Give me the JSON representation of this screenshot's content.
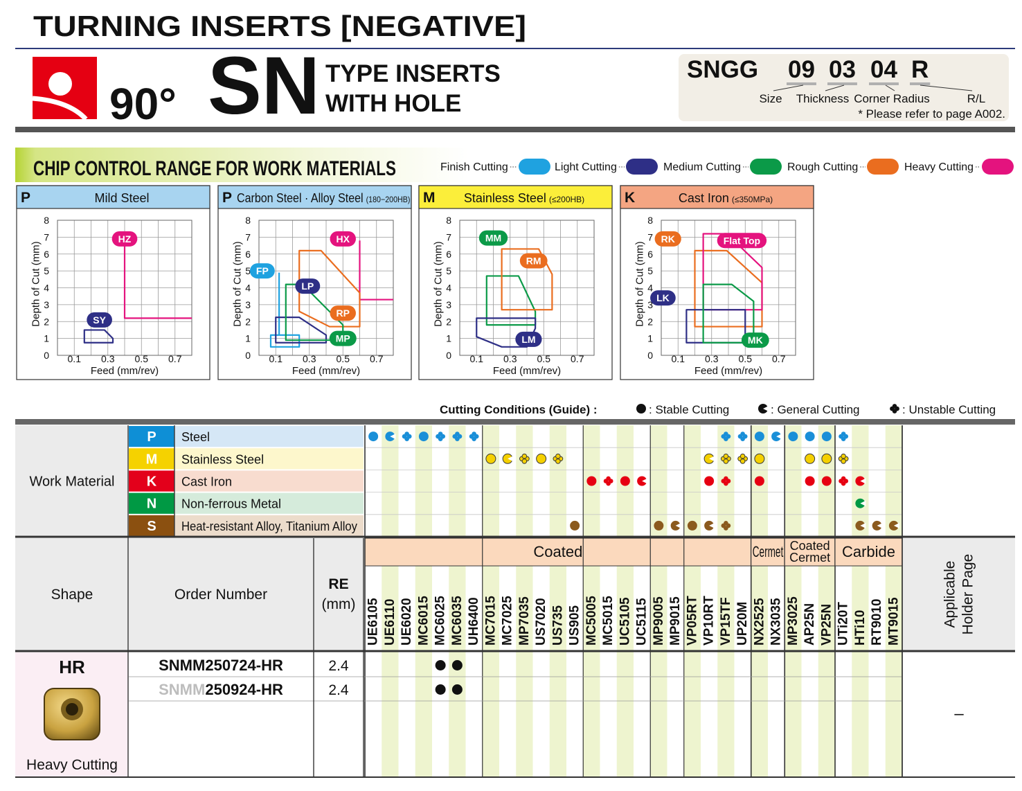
{
  "header": {
    "title": "TURNING INSERTS [NEGATIVE]",
    "angle": "90°",
    "code": "SN",
    "type_lines": [
      "TYPE INSERTS",
      "WITH HOLE"
    ]
  },
  "designation": {
    "parts": [
      "SNGG",
      "09",
      "03",
      "04",
      "R"
    ],
    "labels": [
      "Size",
      "Thickness",
      "Corner Radius",
      "R/L"
    ],
    "note": "* Please refer to page A002."
  },
  "chip_control": {
    "title": "CHIP CONTROL RANGE FOR WORK MATERIALS",
    "legend": [
      {
        "label": "Finish Cutting",
        "color": "#1fa2e0"
      },
      {
        "label": "Light Cutting",
        "color": "#2e2f86"
      },
      {
        "label": "Medium Cutting",
        "color": "#0b9a48"
      },
      {
        "label": "Rough Cutting",
        "color": "#ea6d1f"
      },
      {
        "label": "Heavy Cutting",
        "color": "#e4137e"
      }
    ],
    "charts": [
      {
        "type": "region",
        "letter": "P",
        "title": "Mild Steel",
        "header_color": "#a8d4f0",
        "xlabel": "Feed (mm/rev)",
        "ylabel": "Depth of Cut (mm)",
        "xlim": [
          0,
          0.8
        ],
        "ylim": [
          0,
          8
        ],
        "xticks": [
          0.1,
          0.3,
          0.5,
          0.7
        ],
        "yticks": [
          0,
          1,
          2,
          3,
          4,
          5,
          6,
          7,
          8
        ],
        "regions": [
          {
            "label": "HZ",
            "color": "#e4137e",
            "closed": false,
            "x": [
              0.4,
              0.4,
              0.8
            ],
            "y": [
              6.9,
              2.2,
              2.2
            ]
          },
          {
            "label": "SY",
            "color": "#2e2f86",
            "closed": true,
            "x": [
              0.16,
              0.28,
              0.33,
              0.33,
              0.16
            ],
            "y": [
              1.5,
              1.5,
              1.0,
              0.75,
              0.75
            ]
          }
        ]
      },
      {
        "type": "region",
        "letter": "P",
        "title": "Carbon Steel · Alloy Steel",
        "subtitle": "(180−200HB)",
        "header_color": "#a8d4f0",
        "xlabel": "Feed (mm/rev)",
        "ylabel": "Depth of Cut (mm)",
        "xlim": [
          0,
          0.8
        ],
        "ylim": [
          0,
          8
        ],
        "xticks": [
          0.1,
          0.3,
          0.5,
          0.7
        ],
        "yticks": [
          0,
          1,
          2,
          3,
          4,
          5,
          6,
          7,
          8
        ],
        "regions": [
          {
            "label": "FP",
            "color": "#1fa2e0",
            "closed": false,
            "x": [
              0.12,
              0.12,
              0.24,
              0.24,
              0.07,
              0.07,
              0.12
            ],
            "y": [
              4.9,
              1.2,
              1.2,
              0.5,
              0.5,
              1.2,
              1.2
            ]
          },
          {
            "label": "HX",
            "color": "#e4137e",
            "closed": false,
            "x": [
              0.6,
              0.6,
              0.8
            ],
            "y": [
              6.8,
              3.3,
              3.3
            ]
          },
          {
            "label": "LP",
            "color": "#2e2f86",
            "closed": true,
            "x": [
              0.1,
              0.24,
              0.4,
              0.4,
              0.1
            ],
            "y": [
              2.25,
              2.25,
              1.2,
              0.75,
              0.75
            ]
          },
          {
            "label": "RP",
            "color": "#ea6d1f",
            "closed": true,
            "x": [
              0.24,
              0.37,
              0.6,
              0.6,
              0.42,
              0.24
            ],
            "y": [
              6.2,
              6.2,
              3.7,
              1.7,
              1.7,
              2.6
            ]
          },
          {
            "label": "MP",
            "color": "#0b9a48",
            "closed": true,
            "x": [
              0.16,
              0.26,
              0.5,
              0.5,
              0.16
            ],
            "y": [
              4.2,
              4.2,
              1.8,
              0.9,
              0.9
            ]
          }
        ]
      },
      {
        "type": "region",
        "letter": "M",
        "title": "Stainless Steel",
        "subtitle": "(≤200HB)",
        "header_color": "#fbee3a",
        "xlabel": "Feed (mm/rev)",
        "ylabel": "Depth of Cut (mm)",
        "xlim": [
          0,
          0.8
        ],
        "ylim": [
          0,
          8
        ],
        "xticks": [
          0.1,
          0.3,
          0.5,
          0.7
        ],
        "yticks": [
          0,
          1,
          2,
          3,
          4,
          5,
          6,
          7,
          8
        ],
        "regions": [
          {
            "label": "MM",
            "color": "#0b9a48",
            "closed": true,
            "x": [
              0.16,
              0.35,
              0.45,
              0.45,
              0.16
            ],
            "y": [
              4.7,
              4.7,
              2.6,
              1.8,
              1.8
            ]
          },
          {
            "label": "RM",
            "color": "#ea6d1f",
            "closed": true,
            "x": [
              0.25,
              0.47,
              0.55,
              0.55,
              0.25
            ],
            "y": [
              6.3,
              6.3,
              4.8,
              2.7,
              2.7
            ]
          },
          {
            "label": "LM",
            "color": "#2e2f86",
            "closed": true,
            "x": [
              0.1,
              0.45,
              0.45,
              0.4,
              0.25,
              0.1
            ],
            "y": [
              2.2,
              2.2,
              1.6,
              0.5,
              0.5,
              1.1
            ]
          }
        ]
      },
      {
        "type": "region",
        "letter": "K",
        "title": "Cast Iron",
        "subtitle": "(≤350MPa)",
        "header_color": "#f4a582",
        "xlabel": "Feed (mm/rev)",
        "ylabel": "Depth of Cut (mm)",
        "xlim": [
          0,
          0.8
        ],
        "ylim": [
          0,
          8
        ],
        "xticks": [
          0.1,
          0.3,
          0.5,
          0.7
        ],
        "yticks": [
          0,
          1,
          2,
          3,
          4,
          5,
          6,
          7,
          8
        ],
        "regions": [
          {
            "label": "RK",
            "color": "#ea6d1f",
            "closed": true,
            "x": [
              0.2,
              0.39,
              0.6,
              0.6,
              0.2
            ],
            "y": [
              6.2,
              6.2,
              4.3,
              1.7,
              1.7
            ]
          },
          {
            "label": "Flat Top",
            "color": "#e4137e",
            "closed": true,
            "x": [
              0.25,
              0.39,
              0.6,
              0.6,
              0.25
            ],
            "y": [
              7.2,
              7.2,
              5.2,
              2.7,
              2.7
            ]
          },
          {
            "label": "LK",
            "color": "#2e2f86",
            "closed": true,
            "x": [
              0.15,
              0.5,
              0.5,
              0.15
            ],
            "y": [
              2.7,
              2.7,
              0.75,
              0.75
            ]
          },
          {
            "label": "MK",
            "color": "#0b9a48",
            "closed": true,
            "x": [
              0.25,
              0.42,
              0.55,
              0.55,
              0.25
            ],
            "y": [
              4.2,
              4.2,
              3.2,
              0.75,
              0.75
            ]
          }
        ]
      }
    ]
  },
  "conditions_legend": {
    "title": "Cutting Conditions (Guide) :",
    "items": [
      {
        "symbol": "S",
        "label": ": Stable Cutting"
      },
      {
        "symbol": "G",
        "label": ": General Cutting"
      },
      {
        "symbol": "U",
        "label": ": Unstable Cutting"
      }
    ]
  },
  "table": {
    "work_material_label": "Work Material",
    "materials": [
      {
        "letter": "P",
        "name": "Steel",
        "color": "#0e8fd6",
        "bg": "#d5e7f6",
        "dot": "#1a8fd8",
        "conditions": [
          "S",
          "G",
          "U",
          "S",
          "U",
          "U",
          "U",
          null,
          null,
          null,
          null,
          null,
          null,
          null,
          null,
          null,
          null,
          null,
          null,
          null,
          null,
          "U",
          "U",
          "S",
          "G",
          "S",
          "S",
          "S",
          "U",
          null,
          null,
          null
        ]
      },
      {
        "letter": "M",
        "name": "Stainless Steel",
        "color": "#f5d200",
        "bg": "#fdf7cc",
        "dot": "#f5d000",
        "dot_stroke": "#3a3a3a",
        "conditions": [
          null,
          null,
          null,
          null,
          null,
          null,
          null,
          "S",
          "G",
          "U",
          "S",
          "U",
          null,
          null,
          null,
          null,
          null,
          null,
          null,
          null,
          "G",
          "U",
          "U",
          "S",
          null,
          null,
          "S",
          "S",
          "U",
          null,
          null,
          null
        ]
      },
      {
        "letter": "K",
        "name": "Cast Iron",
        "color": "#e3001b",
        "bg": "#f8dccf",
        "dot": "#e60012",
        "conditions": [
          null,
          null,
          null,
          null,
          null,
          null,
          null,
          null,
          null,
          null,
          null,
          null,
          null,
          "S",
          "U",
          "S",
          "G",
          null,
          null,
          null,
          "S",
          "U",
          null,
          "S",
          null,
          null,
          "S",
          "S",
          "U",
          "G",
          null,
          null
        ]
      },
      {
        "letter": "N",
        "name": "Non-ferrous Metal",
        "color": "#009944",
        "bg": "#d5ebdb",
        "dot": "#009944",
        "conditions": [
          null,
          null,
          null,
          null,
          null,
          null,
          null,
          null,
          null,
          null,
          null,
          null,
          null,
          null,
          null,
          null,
          null,
          null,
          null,
          null,
          null,
          null,
          null,
          null,
          null,
          null,
          null,
          null,
          null,
          "G",
          null,
          null
        ]
      },
      {
        "letter": "S",
        "name": "Heat-resistant Alloy, Titanium Alloy",
        "color": "#8b5010",
        "bg": "#ecdccb",
        "dot": "#8b5a1e",
        "conditions": [
          null,
          null,
          null,
          null,
          null,
          null,
          null,
          null,
          null,
          null,
          null,
          null,
          "S",
          null,
          null,
          null,
          null,
          "S",
          "G",
          "S",
          "G",
          "U",
          null,
          null,
          null,
          null,
          null,
          null,
          null,
          "G",
          "G",
          "G"
        ]
      }
    ],
    "grade_groups": [
      {
        "label_lines": [
          "Coated"
        ],
        "families": [
          [
            "UE6105",
            "UE6110",
            "UE6020",
            "MC6015",
            "MC6025",
            "MC6035",
            "UH6400"
          ],
          [
            "MC7015",
            "MC7025",
            "MP7035",
            "US7020",
            "US735",
            "US905"
          ],
          [
            "MC5005",
            "MC5015",
            "UC5105",
            "UC5115"
          ],
          [
            "MP9005",
            "MP9015"
          ],
          [
            "VP05RT",
            "VP10RT",
            "VP15TF",
            "UP20M"
          ]
        ]
      },
      {
        "label_lines": [
          "Cermet"
        ],
        "families": [
          [
            "NX2525",
            "NX3035"
          ]
        ]
      },
      {
        "label_lines": [
          "Coated",
          "Cermet"
        ],
        "families": [
          [
            "MP3025",
            "AP25N",
            "VP25N"
          ]
        ]
      },
      {
        "label_lines": [
          "Carbide"
        ],
        "families": [
          [
            "UTi20T",
            "HTi10",
            "RT9010",
            "MT9015"
          ]
        ]
      }
    ],
    "headers": {
      "shape": "Shape",
      "order_number": "Order Number",
      "re": "RE",
      "re_unit": "(mm)",
      "holder": [
        "Applicable",
        "Holder Page"
      ]
    },
    "products": [
      {
        "chipbreaker": "HR",
        "application": "Heavy Cutting",
        "holder_page": "–",
        "items": [
          {
            "prefix": "SNMM",
            "rest": "250724-HR",
            "prefix_muted": false,
            "re": "2.4",
            "stock": [
              "MC6025",
              "MC6035"
            ]
          },
          {
            "prefix": "SNMM",
            "rest": "250924-HR",
            "prefix_muted": true,
            "re": "2.4",
            "stock": [
              "MC6025",
              "MC6035"
            ]
          }
        ]
      }
    ]
  }
}
